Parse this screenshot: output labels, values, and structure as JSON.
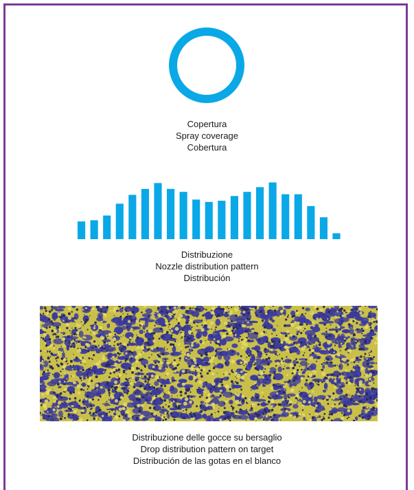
{
  "colors": {
    "frame": "#7b3a96",
    "spray_blue": "#0aa8e6",
    "drop_blue": "#3b3a9e",
    "target_yellow": "#c9c04a"
  },
  "coverage": {
    "shape": "ring",
    "caption": [
      "Copertura",
      "Spray coverage",
      "Cobertura"
    ]
  },
  "distribution": {
    "caption": [
      "Distribuzione",
      "Nozzle distribution pattern",
      "Distribución"
    ]
  },
  "target": {
    "caption": [
      "Distribuzione delle gocce su bersaglio",
      "Drop distribution pattern on target",
      "Distribución de las gotas en el blanco"
    ]
  },
  "chart_data": {
    "type": "bar",
    "title": "",
    "xlabel": "",
    "ylabel": "",
    "ylim": [
      0,
      100
    ],
    "values": [
      30,
      32,
      40,
      60,
      75,
      85,
      95,
      85,
      80,
      67,
      63,
      65,
      73,
      80,
      88,
      96,
      76,
      76,
      56,
      37,
      10
    ]
  }
}
